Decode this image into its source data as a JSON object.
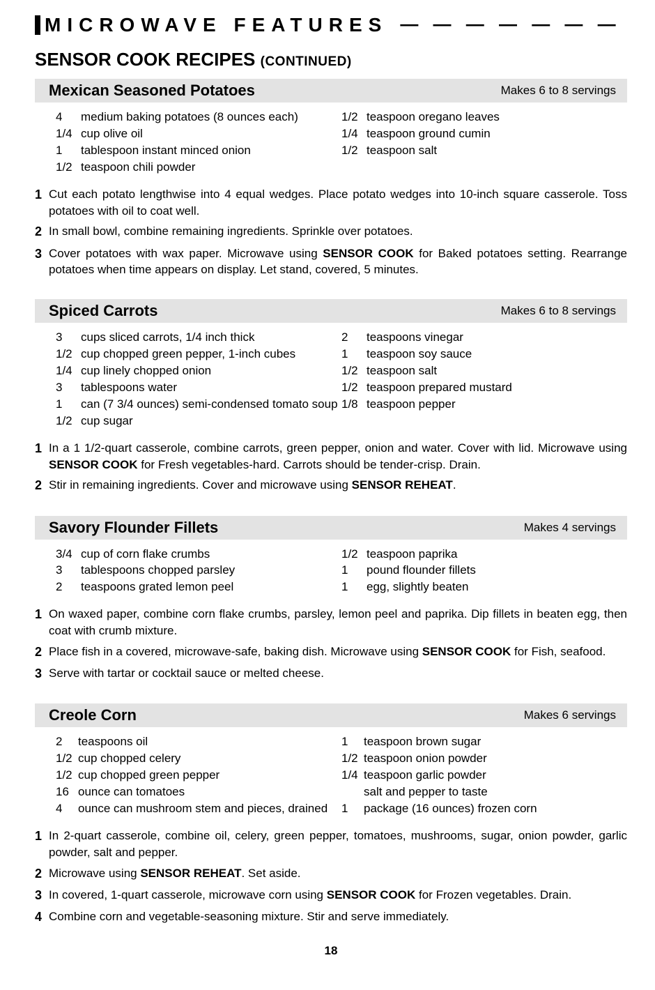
{
  "header": {
    "title": "MICROWAVE FEATURES",
    "dashes": "— — — — — — — — — — — — — — — — — — — — —"
  },
  "section": {
    "title": "SENSOR COOK RECIPES ",
    "continued": "(CONTINUED)"
  },
  "page_number": "18",
  "recipes": [
    {
      "title": "Mexican Seasoned Potatoes",
      "servings": "Makes 6 to 8 servings",
      "ingredients_left": [
        {
          "qty": "4",
          "item": "medium baking potatoes (8 ounces each)"
        },
        {
          "qty": "1/4",
          "item": "cup olive oil"
        },
        {
          "qty": "1",
          "item": "tablespoon instant minced onion"
        },
        {
          "qty": "1/2",
          "item": "teaspoon chili powder"
        }
      ],
      "ingredients_right": [
        {
          "qty": "1/2",
          "item": "teaspoon oregano leaves"
        },
        {
          "qty": "1/4",
          "item": "teaspoon ground cumin"
        },
        {
          "qty": "1/2",
          "item": "teaspoon salt"
        }
      ],
      "steps": [
        "Cut each potato lengthwise into 4 equal wedges. Place potato wedges into 10-inch square casserole. Toss potatoes with oil to coat well.",
        "In small bowl, combine remaining ingredients. Sprinkle over potatoes.",
        "Cover potatoes with wax paper. Microwave using <b>SENSOR COOK</b> for Baked potatoes setting. Rearrange potatoes when time  appears on display. Let stand, covered, 5 minutes."
      ]
    },
    {
      "title": "Spiced Carrots",
      "servings": "Makes 6 to 8 servings",
      "ingredients_left": [
        {
          "qty": "3",
          "item": "cups sliced carrots, 1/4 inch thick"
        },
        {
          "qty": "1/2",
          "item": "cup chopped green pepper, 1-inch cubes"
        },
        {
          "qty": "1/4",
          "item": "cup linely chopped onion"
        },
        {
          "qty": "3",
          "item": "tablespoons water"
        },
        {
          "qty": "1",
          "item": "can (7 3/4 ounces) semi-condensed tomato soup"
        },
        {
          "qty": "1/2",
          "item": "cup sugar"
        }
      ],
      "ingredients_right": [
        {
          "qty": "2",
          "item": "teaspoons vinegar"
        },
        {
          "qty": "1",
          "item": "teaspoon soy sauce"
        },
        {
          "qty": "1/2",
          "item": "teaspoon salt"
        },
        {
          "qty": "1/2",
          "item": "teaspoon prepared mustard"
        },
        {
          "qty": "1/8",
          "item": "teaspoon pepper"
        }
      ],
      "steps": [
        "In a 1 1/2-quart casserole, combine carrots, green pepper, onion and water. Cover with lid. Microwave using <b>SENSOR COOK</b> for Fresh vegetables-hard. Carrots should be tender-crisp. Drain.",
        "Stir in remaining ingredients. Cover and microwave using <b>SENSOR REHEAT</b>."
      ]
    },
    {
      "title": "Savory Flounder Fillets",
      "servings": "Makes 4 servings",
      "ingredients_left": [
        {
          "qty": "3/4",
          "item": "cup of corn flake crumbs"
        },
        {
          "qty": "3",
          "item": "tablespoons chopped parsley"
        },
        {
          "qty": "2",
          "item": "teaspoons grated lemon peel"
        }
      ],
      "ingredients_right": [
        {
          "qty": "1/2",
          "item": "teaspoon paprika"
        },
        {
          "qty": "1",
          "item": "pound flounder fillets"
        },
        {
          "qty": "1",
          "item": "egg, slightly beaten"
        }
      ],
      "steps": [
        "On waxed paper, combine corn flake crumbs, parsley, lemon peel and paprika.  Dip fillets in beaten egg, then coat with crumb mixture.",
        "Place fish in a covered, microwave-safe, baking dish.  Microwave using <b>SENSOR COOK</b> for Fish, seafood.",
        "Serve with tartar or cocktail sauce or melted cheese."
      ]
    },
    {
      "title": "Creole Corn",
      "servings": "Makes 6 servings",
      "ingredients_left": [
        {
          "qty": "2",
          "item": "teaspoons oil"
        },
        {
          "qty": "1/2",
          "item": "cup chopped celery"
        },
        {
          "qty": "1/2",
          "item": "cup chopped green pepper"
        },
        {
          "qty": "16",
          "item": "ounce can tomatoes"
        },
        {
          "qty": "4",
          "item": "ounce can mushroom stem and pieces, drained"
        }
      ],
      "ingredients_right": [
        {
          "qty": "1",
          "item": "teaspoon brown sugar"
        },
        {
          "qty": "1/2",
          "item": "teaspoon onion powder"
        },
        {
          "qty": "1/4",
          "item": "teaspoon garlic powder"
        },
        {
          "qty": "",
          "item": "salt and pepper to taste"
        },
        {
          "qty": "1",
          "item": "package (16 ounces) frozen corn"
        }
      ],
      "steps": [
        "In 2-quart casserole, combine oil, celery, green pepper, tomatoes, mushrooms, sugar, onion powder, garlic powder, salt and pepper.",
        "Microwave using <b>SENSOR REHEAT</b>. Set aside.",
        "In covered, 1-quart casserole, microwave corn using <b>SENSOR COOK</b> for Frozen vegetables. Drain.",
        "Combine corn and vegetable-seasoning mixture. Stir and serve immediately."
      ]
    }
  ]
}
